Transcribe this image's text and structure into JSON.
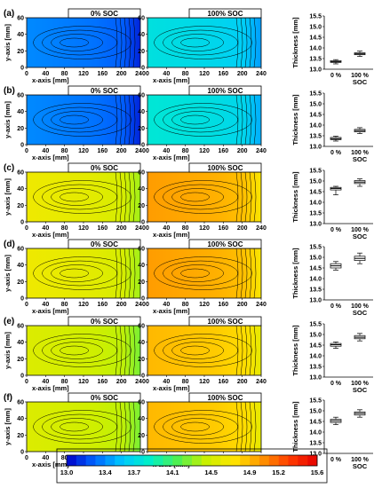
{
  "colorbar": {
    "ticks": [
      "13.0",
      "13.4",
      "13.7",
      "14.1",
      "14.5",
      "14.9",
      "15.2",
      "15.6"
    ],
    "range": [
      13.0,
      15.6
    ],
    "colors": [
      "#0000c8",
      "#0064ff",
      "#00c8ff",
      "#00f0c8",
      "#50f050",
      "#c8f000",
      "#ffe600",
      "#ff9600",
      "#ff3c00",
      "#e60000"
    ]
  },
  "chart_data": [
    {
      "panel": "(a)",
      "type": "heatmap",
      "maps": [
        {
          "title": "0% SOC",
          "mean": 13.35
        },
        {
          "title": "100% SOC",
          "mean": 13.7
        }
      ],
      "xlabel": "x-axis [mm]",
      "ylabel": "y-axis [mm]",
      "xticks": [
        "0",
        "40",
        "80",
        "120",
        "160",
        "200",
        "240"
      ],
      "yticks": [
        "0",
        "20",
        "40",
        "60"
      ],
      "box": {
        "categories": [
          "0 %",
          "100 %"
        ],
        "xlabel": "SOC",
        "ylabel": "Thickness [mm]",
        "yticks": [
          "13.0",
          "13.5",
          "14.0",
          "14.5",
          "15.0",
          "15.5"
        ],
        "ylim": [
          13.0,
          15.5
        ],
        "stats": [
          {
            "min": 13.25,
            "q1": 13.32,
            "med": 13.35,
            "q3": 13.4,
            "max": 13.45
          },
          {
            "min": 13.6,
            "q1": 13.68,
            "med": 13.72,
            "q3": 13.77,
            "max": 13.85
          }
        ]
      }
    },
    {
      "panel": "(b)",
      "type": "heatmap",
      "maps": [
        {
          "title": "0% SOC",
          "mean": 13.35
        },
        {
          "title": "100% SOC",
          "mean": 13.75
        }
      ],
      "xlabel": "x-axis [mm]",
      "ylabel": "y-axis [mm]",
      "xticks": [
        "0",
        "40",
        "80",
        "120",
        "160",
        "200",
        "240"
      ],
      "yticks": [
        "0",
        "20",
        "40",
        "60"
      ],
      "box": {
        "categories": [
          "0 %",
          "100 %"
        ],
        "xlabel": "SOC",
        "ylabel": "Thickness [mm]",
        "yticks": [
          "13.0",
          "13.5",
          "14.0",
          "14.5",
          "15.0",
          "15.5"
        ],
        "ylim": [
          13.0,
          15.5
        ],
        "stats": [
          {
            "min": 13.25,
            "q1": 13.32,
            "med": 13.36,
            "q3": 13.42,
            "max": 13.48
          },
          {
            "min": 13.6,
            "q1": 13.68,
            "med": 13.74,
            "q3": 13.8,
            "max": 13.88
          }
        ]
      }
    },
    {
      "panel": "(c)",
      "type": "heatmap",
      "maps": [
        {
          "title": "0% SOC",
          "mean": 14.6
        },
        {
          "title": "100% SOC",
          "mean": 14.95
        }
      ],
      "xlabel": "x-axis [mm]",
      "ylabel": "y-axis [mm]",
      "xticks": [
        "0",
        "40",
        "80",
        "120",
        "160",
        "200",
        "240"
      ],
      "yticks": [
        "0",
        "20",
        "40",
        "60"
      ],
      "box": {
        "categories": [
          "0 %",
          "100 %"
        ],
        "xlabel": "SOC",
        "ylabel": "Thickness [mm]",
        "yticks": [
          "13.0",
          "13.5",
          "14.0",
          "14.5",
          "15.0",
          "15.5"
        ],
        "ylim": [
          13.0,
          15.5
        ],
        "stats": [
          {
            "min": 14.35,
            "q1": 14.58,
            "med": 14.65,
            "q3": 14.7,
            "max": 14.75
          },
          {
            "min": 14.75,
            "q1": 14.88,
            "med": 14.95,
            "q3": 15.02,
            "max": 15.1
          }
        ]
      }
    },
    {
      "panel": "(d)",
      "type": "heatmap",
      "maps": [
        {
          "title": "0% SOC",
          "mean": 14.6
        },
        {
          "title": "100% SOC",
          "mean": 14.95
        }
      ],
      "xlabel": "x-axis [mm]",
      "ylabel": "y-axis [mm]",
      "xticks": [
        "0",
        "40",
        "80",
        "120",
        "160",
        "200",
        "240"
      ],
      "yticks": [
        "0",
        "20",
        "40",
        "60"
      ],
      "box": {
        "categories": [
          "0 %",
          "100 %"
        ],
        "xlabel": "SOC",
        "ylabel": "Thickness [mm]",
        "yticks": [
          "13.0",
          "13.5",
          "14.0",
          "14.5",
          "15.0",
          "15.5"
        ],
        "ylim": [
          13.0,
          15.5
        ],
        "stats": [
          {
            "min": 14.4,
            "q1": 14.5,
            "med": 14.6,
            "q3": 14.7,
            "max": 14.8
          },
          {
            "min": 14.7,
            "q1": 14.85,
            "med": 14.95,
            "q3": 15.05,
            "max": 15.2
          }
        ]
      }
    },
    {
      "panel": "(e)",
      "type": "heatmap",
      "maps": [
        {
          "title": "0% SOC",
          "mean": 14.5
        },
        {
          "title": "100% SOC",
          "mean": 14.85
        }
      ],
      "xlabel": "x-axis [mm]",
      "ylabel": "y-axis [mm]",
      "xticks": [
        "0",
        "40",
        "80",
        "120",
        "160",
        "200",
        "240"
      ],
      "yticks": [
        "0",
        "20",
        "40",
        "60"
      ],
      "box": {
        "categories": [
          "0 %",
          "100 %"
        ],
        "xlabel": "SOC",
        "ylabel": "Thickness [mm]",
        "yticks": [
          "13.0",
          "13.5",
          "14.0",
          "14.5",
          "15.0",
          "15.5"
        ],
        "ylim": [
          13.0,
          15.5
        ],
        "stats": [
          {
            "min": 14.35,
            "q1": 14.45,
            "med": 14.52,
            "q3": 14.58,
            "max": 14.65
          },
          {
            "min": 14.7,
            "q1": 14.8,
            "med": 14.87,
            "q3": 14.95,
            "max": 15.05
          }
        ]
      }
    },
    {
      "panel": "(f)",
      "type": "heatmap",
      "maps": [
        {
          "title": "0% SOC",
          "mean": 14.5
        },
        {
          "title": "100% SOC",
          "mean": 14.85
        }
      ],
      "xlabel": "x-axis [mm]",
      "ylabel": "y-axis [mm]",
      "xticks": [
        "0",
        "40",
        "80",
        "120",
        "160",
        "200",
        "240"
      ],
      "yticks": [
        "0",
        "20",
        "40",
        "60"
      ],
      "box": {
        "categories": [
          "0 %",
          "100 %"
        ],
        "xlabel": "SOC",
        "ylabel": "Thickness [mm]",
        "yticks": [
          "13.0",
          "13.5",
          "14.0",
          "14.5",
          "15.0",
          "15.5"
        ],
        "ylim": [
          13.0,
          15.5
        ],
        "stats": [
          {
            "min": 14.35,
            "q1": 14.45,
            "med": 14.53,
            "q3": 14.6,
            "max": 14.7
          },
          {
            "min": 14.7,
            "q1": 14.8,
            "med": 14.88,
            "q3": 14.95,
            "max": 15.05
          }
        ]
      }
    }
  ]
}
